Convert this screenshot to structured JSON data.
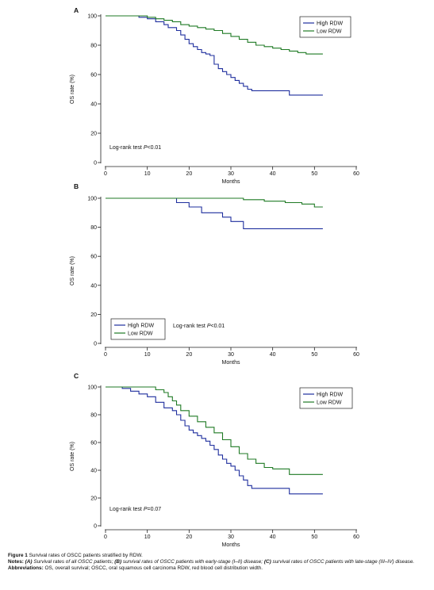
{
  "chart_data": [
    {
      "type": "line",
      "panel_letter": "A",
      "xlabel": "Months",
      "ylabel": "OS rate (%)",
      "xlim": [
        0,
        60
      ],
      "ylim": [
        0,
        100
      ],
      "xticks": [
        "0",
        "10",
        "20",
        "30",
        "40",
        "50",
        "60"
      ],
      "yticks": [
        "0",
        "20",
        "40",
        "60",
        "80",
        "100"
      ],
      "legend_position": "top-right",
      "annotation": {
        "prefix": "Log-rank test ",
        "italic": "P",
        "suffix": "<0.01"
      },
      "series": [
        {
          "name": "High RDW",
          "color": "#1f2f9e",
          "x": [
            0,
            6,
            8,
            10,
            12,
            14,
            15,
            17,
            18,
            19,
            20,
            21,
            22,
            23,
            24,
            25,
            26,
            27,
            28,
            29,
            30,
            31,
            32,
            33,
            34,
            35,
            44,
            52
          ],
          "y": [
            100,
            100,
            99,
            98,
            96,
            94,
            92,
            90,
            87,
            84,
            81,
            79,
            77,
            75,
            74,
            73,
            67,
            64,
            62,
            60,
            58,
            56,
            54,
            52,
            50,
            49,
            46,
            46
          ]
        },
        {
          "name": "Low RDW",
          "color": "#1f7a24",
          "x": [
            0,
            8,
            10,
            12,
            14,
            16,
            18,
            20,
            22,
            24,
            26,
            28,
            30,
            32,
            34,
            36,
            38,
            40,
            42,
            44,
            46,
            48,
            52
          ],
          "y": [
            100,
            100,
            99,
            98,
            97,
            96,
            94,
            93,
            92,
            91,
            90,
            88,
            86,
            84,
            82,
            80,
            79,
            78,
            77,
            76,
            75,
            74,
            74
          ]
        }
      ]
    },
    {
      "type": "line",
      "panel_letter": "B",
      "xlabel": "Months",
      "ylabel": "OS rate (%)",
      "xlim": [
        0,
        60
      ],
      "ylim": [
        0,
        100
      ],
      "xticks": [
        "0",
        "10",
        "20",
        "30",
        "40",
        "50",
        "60"
      ],
      "yticks": [
        "0",
        "20",
        "40",
        "60",
        "80",
        "100"
      ],
      "legend_position": "bottom-left",
      "annotation": {
        "prefix": "Log-rank test ",
        "italic": "P",
        "suffix": "<0.01"
      },
      "series": [
        {
          "name": "High RDW",
          "color": "#1f2f9e",
          "x": [
            0,
            15,
            17,
            20,
            23,
            28,
            30,
            33,
            52
          ],
          "y": [
            100,
            100,
            97,
            94,
            90,
            87,
            84,
            79,
            79
          ]
        },
        {
          "name": "Low RDW",
          "color": "#1f7a24",
          "x": [
            0,
            28,
            33,
            38,
            43,
            47,
            50,
            52
          ],
          "y": [
            100,
            100,
            99,
            98,
            97,
            96,
            94,
            94
          ]
        }
      ]
    },
    {
      "type": "line",
      "panel_letter": "C",
      "xlabel": "Months",
      "ylabel": "OS rate (%)",
      "xlim": [
        0,
        60
      ],
      "ylim": [
        0,
        100
      ],
      "xticks": [
        "0",
        "10",
        "20",
        "30",
        "40",
        "50",
        "60"
      ],
      "yticks": [
        "0",
        "20",
        "40",
        "60",
        "80",
        "100"
      ],
      "legend_position": "top-right",
      "annotation": {
        "prefix": "Log-rank test ",
        "italic": "P",
        "suffix": "=0.07"
      },
      "series": [
        {
          "name": "High RDW",
          "color": "#1f2f9e",
          "x": [
            0,
            4,
            6,
            8,
            10,
            12,
            14,
            16,
            17,
            18,
            19,
            20,
            21,
            22,
            23,
            24,
            25,
            26,
            27,
            28,
            29,
            30,
            31,
            32,
            33,
            34,
            35,
            40,
            44,
            52
          ],
          "y": [
            100,
            99,
            97,
            95,
            93,
            89,
            85,
            83,
            80,
            76,
            72,
            69,
            67,
            65,
            63,
            61,
            58,
            55,
            51,
            48,
            45,
            43,
            40,
            36,
            33,
            29,
            27,
            27,
            23,
            23
          ]
        },
        {
          "name": "Low RDW",
          "color": "#1f7a24",
          "x": [
            0,
            10,
            12,
            14,
            15,
            16,
            17,
            18,
            20,
            22,
            24,
            26,
            28,
            30,
            32,
            34,
            36,
            38,
            40,
            44,
            52
          ],
          "y": [
            100,
            100,
            98,
            96,
            93,
            90,
            87,
            83,
            79,
            75,
            71,
            67,
            62,
            57,
            52,
            48,
            45,
            42,
            41,
            37,
            37
          ]
        }
      ]
    }
  ],
  "caption": {
    "figure_label": "Figure 1",
    "figure_text": "Survival rates of OSCC patients stratified by RDW.",
    "notes_label": "Notes:",
    "notes_parts": [
      {
        "bold": "(A)",
        "text": " Survival rates of all OSCC patients; "
      },
      {
        "bold": "(B)",
        "text": " survival rates of OSCC patients with early-stage (I–II) disease; "
      },
      {
        "bold": "(C)",
        "text": " survival rates of OSCC patients with late-stage (III–IV) disease."
      }
    ],
    "abbreviations_label": "Abbreviations:",
    "abbreviations_text": "OS, overall survival; OSCC, oral squamous cell carcinoma RDW, red blood cell distribution width."
  }
}
